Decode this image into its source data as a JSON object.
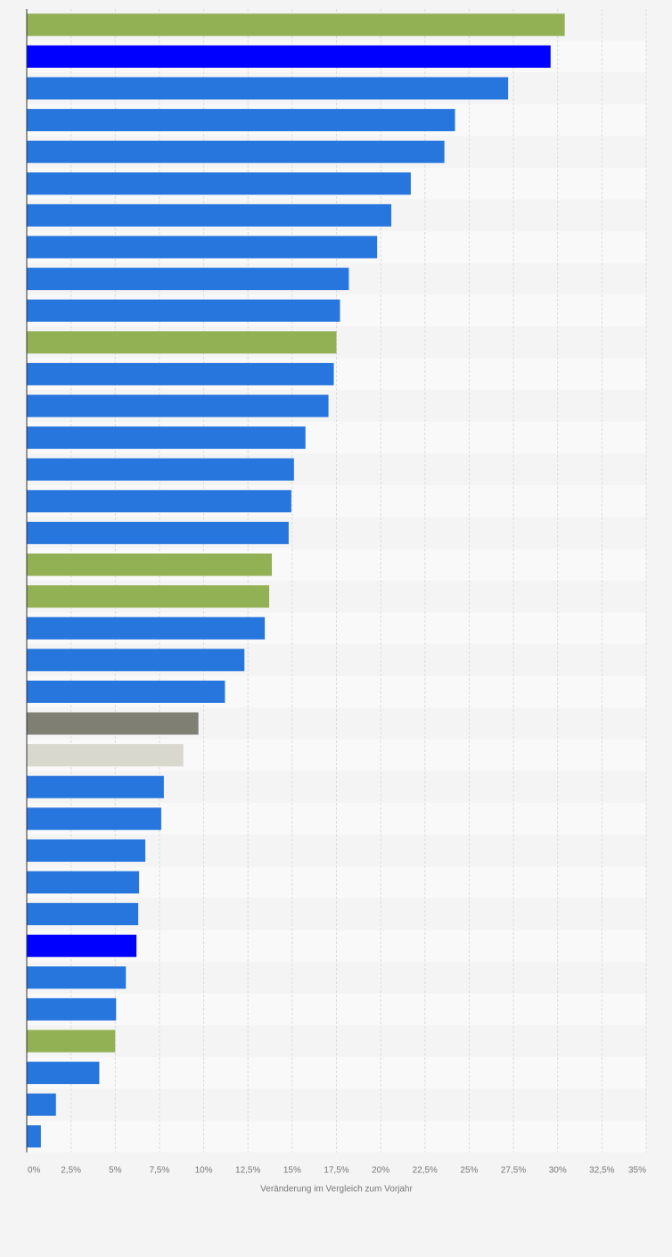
{
  "chart_data": {
    "type": "bar",
    "orientation": "horizontal",
    "xlabel": "Veränderung im Vergleich zum Vorjahr",
    "xlim": [
      0,
      35
    ],
    "ticks": [
      0,
      2.5,
      5,
      7.5,
      10,
      12.5,
      15,
      17.5,
      20,
      22.5,
      25,
      27.5,
      30,
      32.5,
      35
    ],
    "tick_labels": [
      "0%",
      "2,5%",
      "5%",
      "7,5%",
      "10%",
      "12,5%",
      "15%",
      "17,5%",
      "20%",
      "22,5%",
      "25%",
      "27,5%",
      "30%",
      "32,5%",
      "35%"
    ],
    "grid": true,
    "bars": [
      {
        "value": 30.4,
        "color": "#92b155"
      },
      {
        "value": 29.6,
        "color": "#0000ff"
      },
      {
        "value": 27.2,
        "color": "#2776de"
      },
      {
        "value": 24.2,
        "color": "#2776de"
      },
      {
        "value": 23.6,
        "color": "#2776de"
      },
      {
        "value": 21.7,
        "color": "#2776de"
      },
      {
        "value": 20.6,
        "color": "#2776de"
      },
      {
        "value": 19.8,
        "color": "#2776de"
      },
      {
        "value": 18.2,
        "color": "#2776de"
      },
      {
        "value": 17.7,
        "color": "#2776de"
      },
      {
        "value": 17.5,
        "color": "#92b155"
      },
      {
        "value": 17.35,
        "color": "#2776de"
      },
      {
        "value": 17.05,
        "color": "#2776de"
      },
      {
        "value": 15.75,
        "color": "#2776de"
      },
      {
        "value": 15.1,
        "color": "#2776de"
      },
      {
        "value": 14.95,
        "color": "#2776de"
      },
      {
        "value": 14.8,
        "color": "#2776de"
      },
      {
        "value": 13.85,
        "color": "#92b155"
      },
      {
        "value": 13.7,
        "color": "#92b155"
      },
      {
        "value": 13.45,
        "color": "#2776de"
      },
      {
        "value": 12.3,
        "color": "#2776de"
      },
      {
        "value": 11.2,
        "color": "#2776de"
      },
      {
        "value": 9.7,
        "color": "#7f7f73"
      },
      {
        "value": 8.85,
        "color": "#d8d8ce"
      },
      {
        "value": 7.75,
        "color": "#2776de"
      },
      {
        "value": 7.6,
        "color": "#2776de"
      },
      {
        "value": 6.7,
        "color": "#2776de"
      },
      {
        "value": 6.35,
        "color": "#2776de"
      },
      {
        "value": 6.3,
        "color": "#2776de"
      },
      {
        "value": 6.2,
        "color": "#0000ff"
      },
      {
        "value": 5.6,
        "color": "#2776de"
      },
      {
        "value": 5.05,
        "color": "#2776de"
      },
      {
        "value": 5.0,
        "color": "#92b155"
      },
      {
        "value": 4.1,
        "color": "#2776de"
      },
      {
        "value": 1.65,
        "color": "#2776de"
      },
      {
        "value": 0.8,
        "color": "#2776de"
      }
    ]
  }
}
